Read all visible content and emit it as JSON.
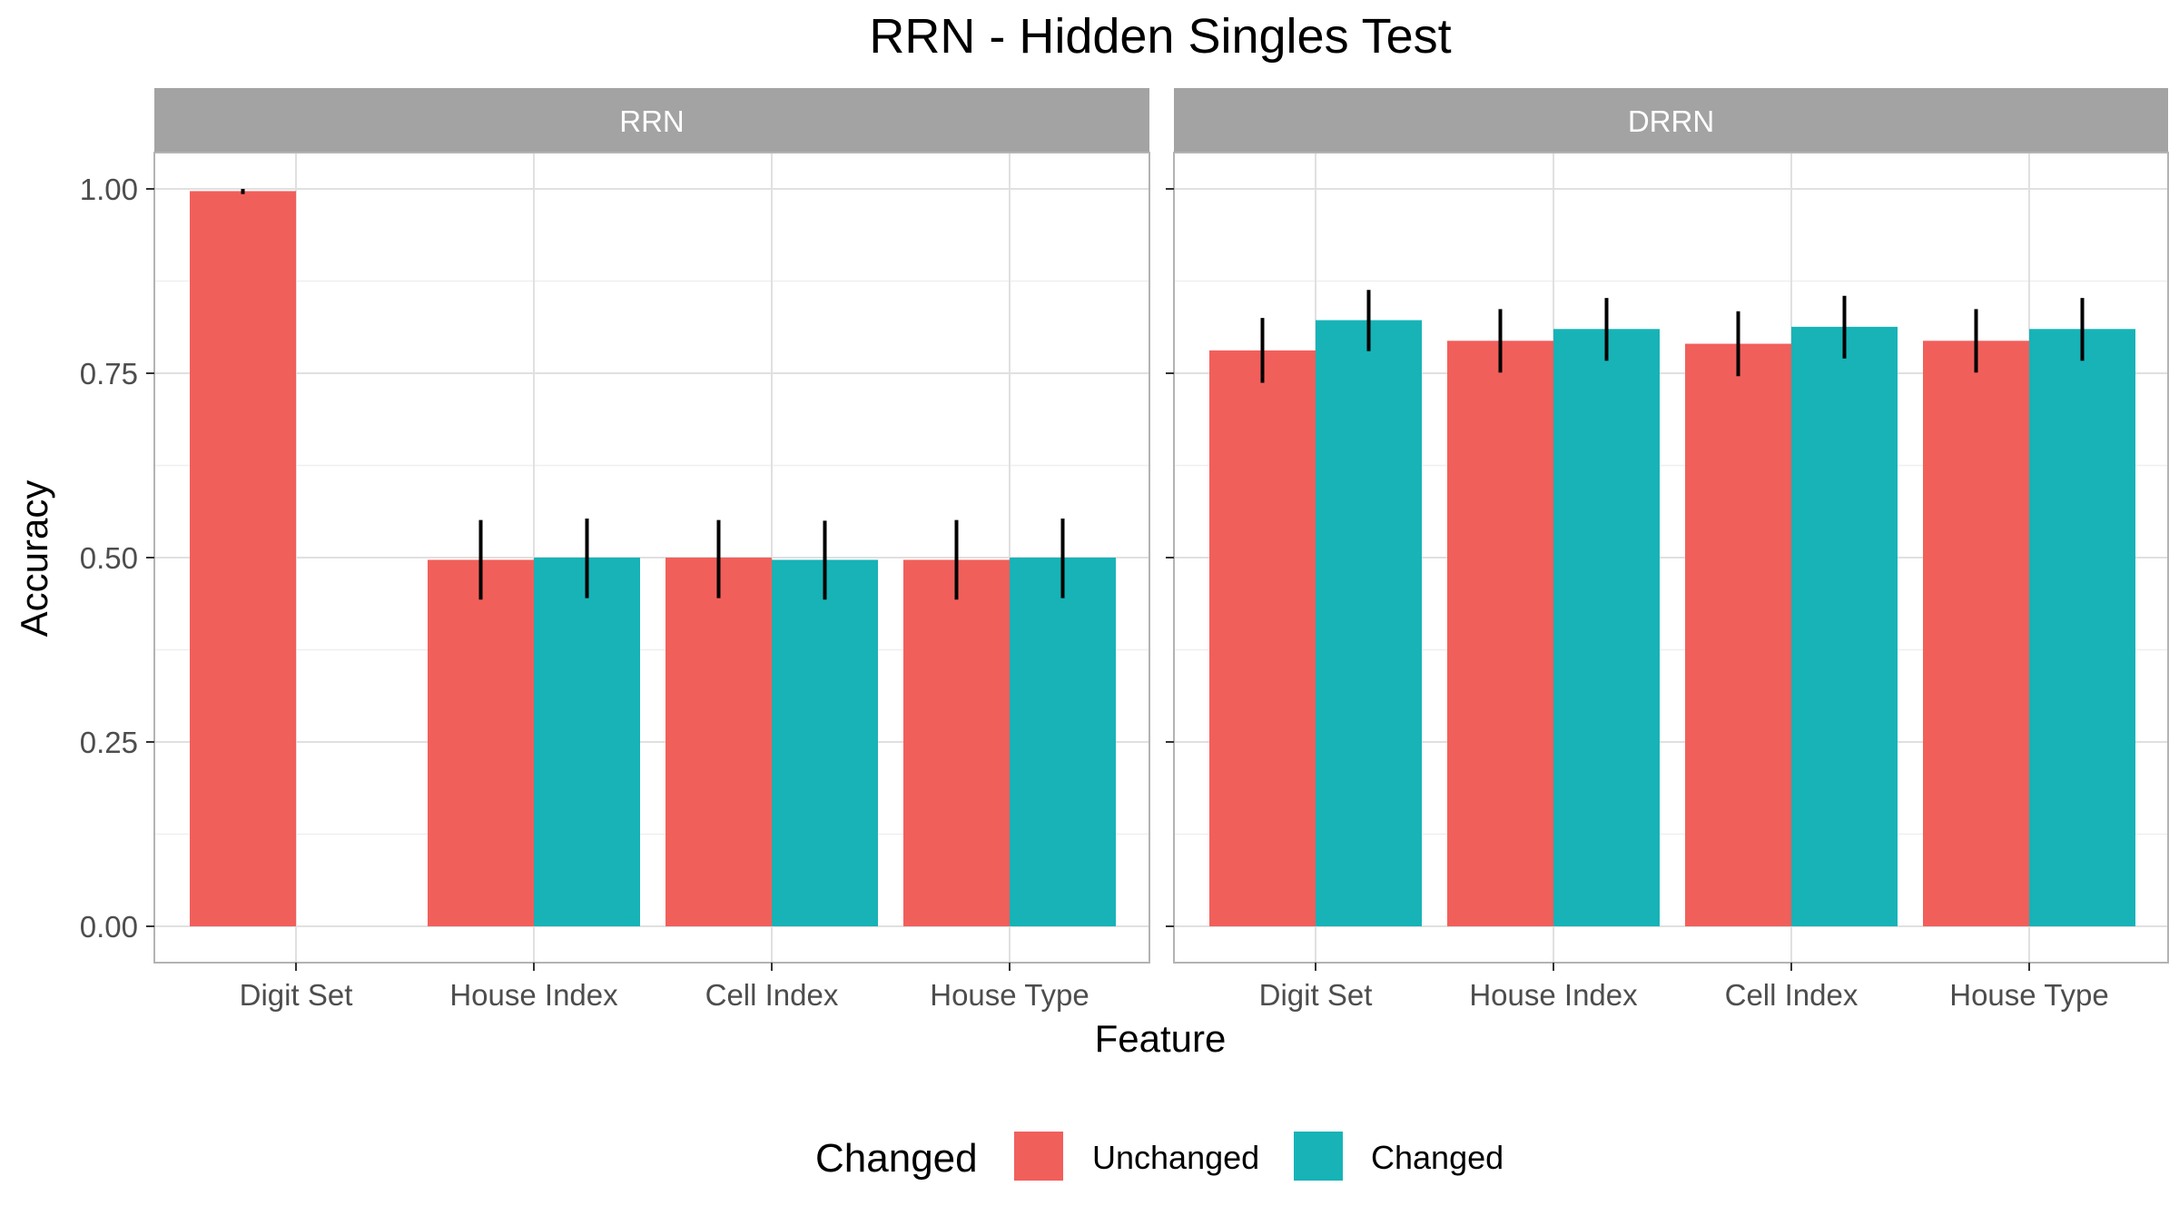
{
  "chart_data": {
    "type": "bar",
    "title": "RRN - Hidden Singles Test",
    "xlabel": "Feature",
    "ylabel": "Accuracy",
    "ylim": [
      0,
      1.1
    ],
    "yticks": [
      "0.00",
      "0.25",
      "0.50",
      "0.75",
      "1.00"
    ],
    "categories": [
      "Digit Set",
      "House Index",
      "Cell Index",
      "House Type"
    ],
    "grid": true,
    "legend": {
      "title": "Changed",
      "position": "bottom",
      "entries": [
        "Unchanged",
        "Changed"
      ]
    },
    "colors": {
      "Unchanged": "#F15F5B",
      "Changed": "#17B3B7",
      "strip": "#A3A3A3",
      "grid": "#E0E0E0",
      "border": "#B3B3B3"
    },
    "panels": [
      {
        "name": "RRN",
        "series": [
          {
            "name": "Unchanged",
            "values": [
              0.997,
              0.497,
              0.5,
              0.497
            ],
            "err_low": [
              0.993,
              0.443,
              0.445,
              0.443
            ],
            "err_high": [
              1.0,
              0.551,
              0.551,
              0.551
            ]
          },
          {
            "name": "Changed",
            "values": [
              null,
              0.5,
              0.497,
              0.5
            ],
            "err_low": [
              null,
              0.445,
              0.443,
              0.445
            ],
            "err_high": [
              null,
              0.553,
              0.55,
              0.553
            ]
          }
        ]
      },
      {
        "name": "DRRN",
        "series": [
          {
            "name": "Unchanged",
            "values": [
              0.781,
              0.794,
              0.79,
              0.794
            ],
            "err_low": [
              0.737,
              0.751,
              0.746,
              0.751
            ],
            "err_high": [
              0.825,
              0.837,
              0.834,
              0.837
            ]
          },
          {
            "name": "Changed",
            "values": [
              0.822,
              0.81,
              0.813,
              0.81
            ],
            "err_low": [
              0.78,
              0.767,
              0.77,
              0.767
            ],
            "err_high": [
              0.863,
              0.852,
              0.855,
              0.852
            ]
          }
        ]
      }
    ]
  }
}
